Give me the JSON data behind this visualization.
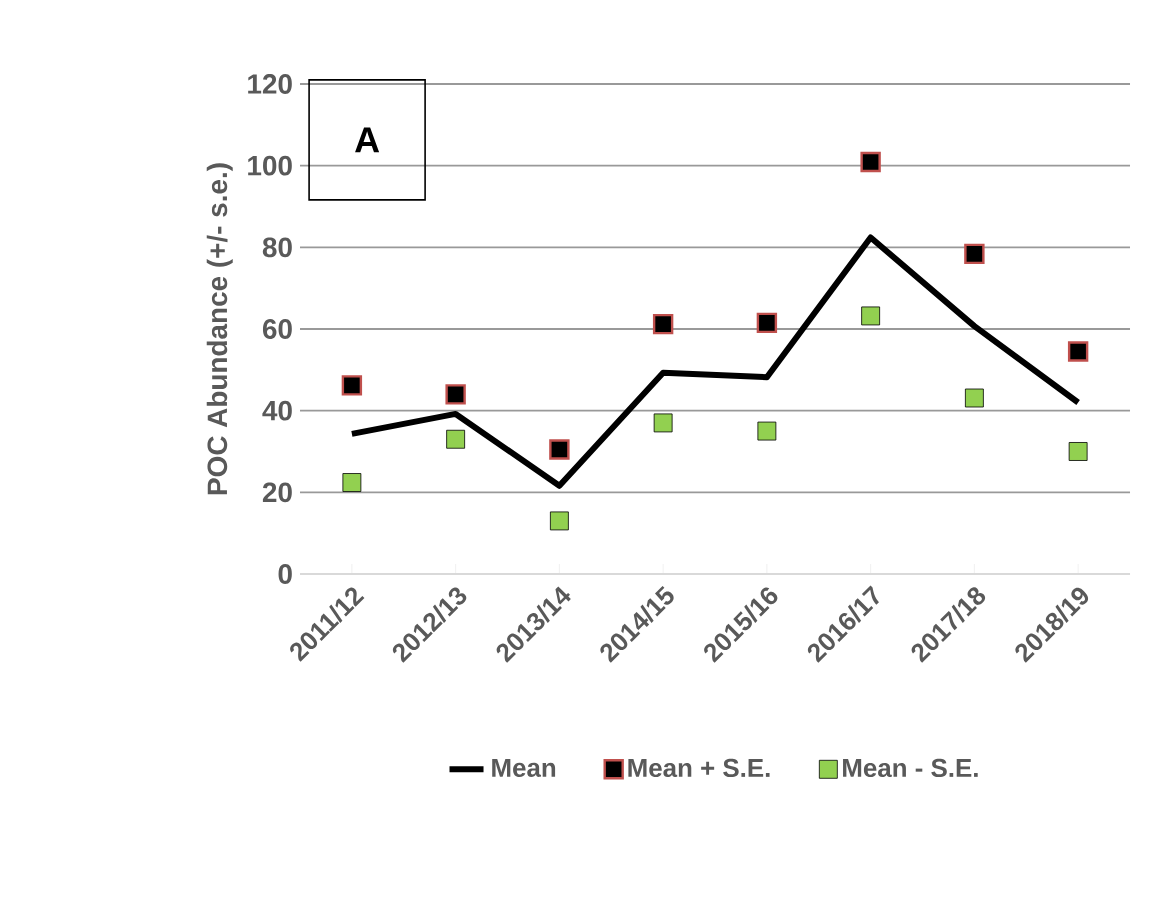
{
  "chart_data": {
    "type": "line",
    "ylabel": "POC Abundance (+/- s.e.)",
    "categories": [
      "2011/12",
      "2012/13",
      "2013/14",
      "2014/15",
      "2015/16",
      "2016/17",
      "2017/18",
      "2018/19"
    ],
    "series": [
      {
        "name": "Mean",
        "color": "#000000",
        "marker": "none",
        "values": [
          34.3,
          39.2,
          21.6,
          49.3,
          48.2,
          82.4,
          60.7,
          42
        ]
      },
      {
        "name": "Mean + S.E.",
        "type": "scatter",
        "color": "#c0504d",
        "marker": "square",
        "values": [
          46.2,
          44,
          30.5,
          61.2,
          61.5,
          100.9,
          78.4,
          54.5
        ]
      },
      {
        "name": "Mean - S.E.",
        "type": "scatter",
        "color": "#92d050",
        "marker": "square",
        "values": [
          22.4,
          33,
          13,
          37,
          35,
          63.2,
          43.1,
          30
        ]
      }
    ],
    "ylim": [
      0,
      120
    ],
    "yticks": [
      0,
      20,
      40,
      60,
      80,
      100,
      120
    ],
    "grid": "y",
    "legend": "bottom",
    "annotations": [
      "A"
    ]
  }
}
